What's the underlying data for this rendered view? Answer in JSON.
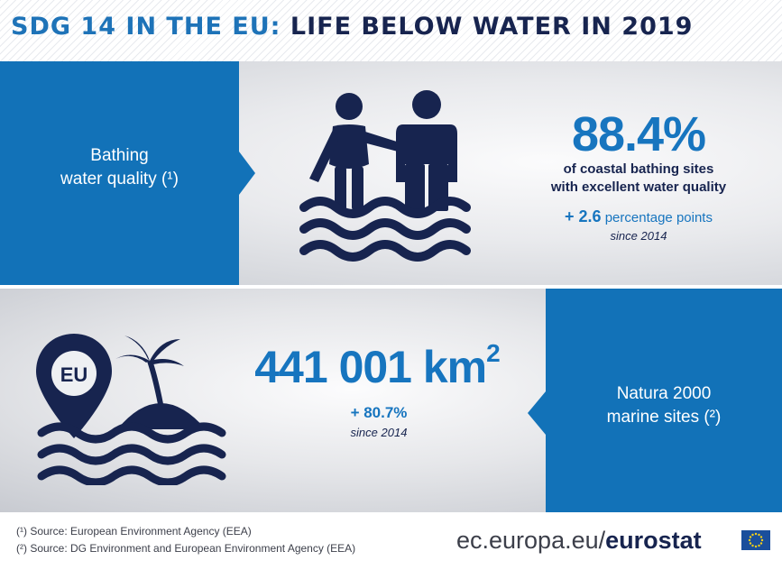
{
  "header": {
    "title_part1": "SDG 14 IN THE EU:",
    "title_part2": "LIFE BELOW WATER IN 2019"
  },
  "bathing": {
    "label_line1": "Bathing",
    "label_line2": "water quality (¹)",
    "value": "88.4%",
    "desc_line1": "of coastal bathing sites",
    "desc_line2": "with excellent water quality",
    "change_value": "+ 2.6",
    "change_unit": "percentage points",
    "since": "since 2014"
  },
  "natura": {
    "label_line1": "Natura 2000",
    "label_line2": "marine sites (²)",
    "value": "441 001 km",
    "value_sup": "2",
    "change": "+ 80.7%",
    "since": "since 2014",
    "badge": "EU"
  },
  "footer": {
    "note1": "(¹) Source: European Environment Agency (EEA)",
    "note2": "(²) Source: DG Environment and European Environment Agency (EEA)",
    "brand_light": "ec.europa.eu/",
    "brand_bold": "eurostat"
  },
  "colors": {
    "blue": "#1272b8",
    "navy": "#17244f",
    "accent_text": "#1775bf"
  },
  "icons": [
    "swimmers-icon",
    "island-location-pin-icon",
    "eu-flag-icon"
  ]
}
